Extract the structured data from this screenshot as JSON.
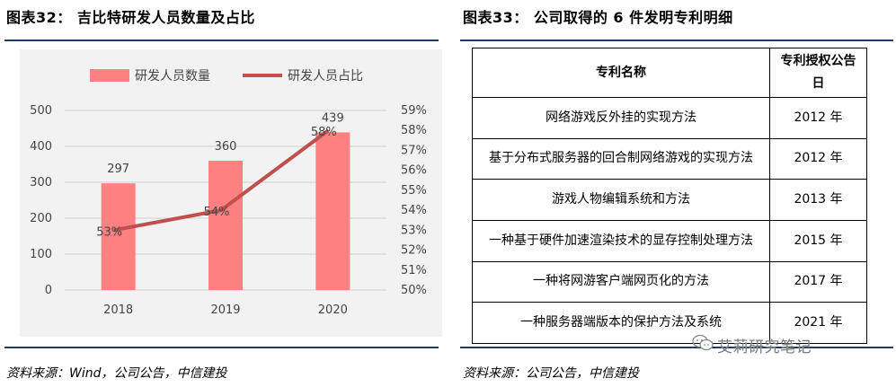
{
  "left": {
    "title": "图表32： 吉比特研发人员数量及占比",
    "source": "资料来源：Wind，公司公告，中信建投"
  },
  "right": {
    "title": "图表33： 公司取得的 6 件发明专利明细",
    "source": "资料来源：公司公告，中信建投",
    "table": {
      "headers": [
        "专利名称",
        "专利授权公告日"
      ],
      "rows": [
        [
          "网络游戏反外挂的实现方法",
          "2012 年"
        ],
        [
          "基于分布式服务器的回合制网络游戏的实现方法",
          "2012 年"
        ],
        [
          "游戏人物编辑系统和方法",
          "2013 年"
        ],
        [
          "一种基于硬件加速渲染技术的显存控制处理方法",
          "2015 年"
        ],
        [
          "一种将网游客户端网页化的方法",
          "2017 年"
        ],
        [
          "一种服务器端版本的保护方法及系统",
          "2021 年"
        ]
      ]
    }
  },
  "watermark": "艾莉研究笔记",
  "colors": {
    "bar": "#ff8080",
    "line": "#c0504d",
    "rule": "#1f3a64",
    "panel": "#f2f2f2"
  },
  "chart_data": {
    "type": "bar",
    "categories": [
      "2018",
      "2019",
      "2020"
    ],
    "series": [
      {
        "name": "研发人员数量",
        "type": "bar",
        "axis": "left",
        "values": [
          297,
          360,
          439
        ],
        "labels": [
          "297",
          "360",
          "439"
        ]
      },
      {
        "name": "研发人员占比",
        "type": "line",
        "axis": "right",
        "values": [
          53,
          54,
          58
        ],
        "labels": [
          "53%",
          "54%",
          "58%"
        ]
      }
    ],
    "y_left": {
      "lim": [
        0,
        500
      ],
      "ticks": [
        "0",
        "100",
        "200",
        "300",
        "400",
        "500"
      ]
    },
    "y_right": {
      "lim": [
        50,
        59
      ],
      "ticks": [
        "50%",
        "51%",
        "52%",
        "53%",
        "54%",
        "55%",
        "56%",
        "57%",
        "58%",
        "59%"
      ]
    },
    "legend_position": "top",
    "grid": true
  }
}
